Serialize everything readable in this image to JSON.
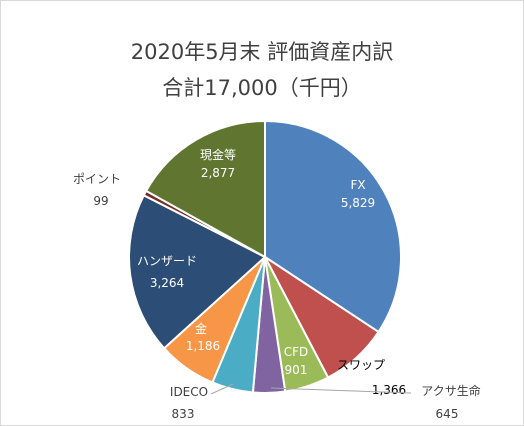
{
  "chart_data": {
    "type": "pie",
    "title": "2020年5月末  評価資産内訳",
    "subtitle": "合計17,000（千円）",
    "slices": [
      {
        "name": "FX",
        "value": 5829,
        "color": "#4f81bd"
      },
      {
        "name": "スワップ",
        "value": 1366,
        "color": "#c0504d"
      },
      {
        "name": "CFD",
        "value": 901,
        "color": "#9bbb59"
      },
      {
        "name": "アクサ生命",
        "value": 645,
        "color": "#8064a2"
      },
      {
        "name": "IDECO",
        "value": 833,
        "color": "#4bacc6"
      },
      {
        "name": "金",
        "value": 1186,
        "color": "#f79646"
      },
      {
        "name": "ハンザード",
        "value": 3264,
        "color": "#2c4d75"
      },
      {
        "name": "ポイント",
        "value": 99,
        "color": "#772c2a"
      },
      {
        "name": "現金等",
        "value": 2877,
        "color": "#5f7530"
      }
    ],
    "value_labels": [
      "5,829",
      "1,366",
      "901",
      "645",
      "833",
      "1,186",
      "3,264",
      "99",
      "2,877"
    ]
  }
}
